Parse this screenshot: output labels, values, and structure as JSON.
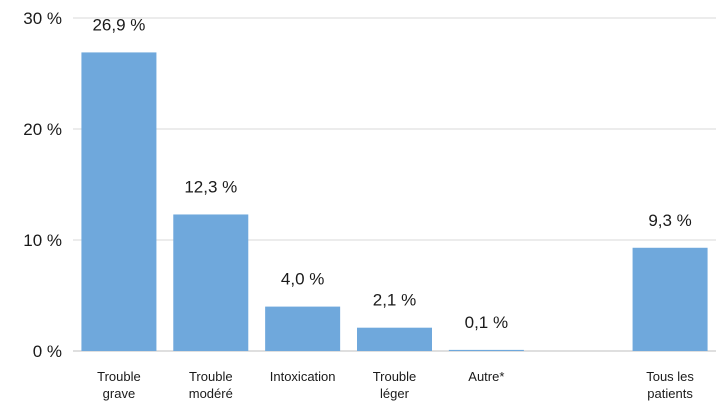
{
  "chart_data": {
    "type": "bar",
    "title": "",
    "xlabel": "",
    "ylabel": "",
    "ylim": [
      0,
      30
    ],
    "yticks": [
      "0 %",
      "10 %",
      "20 %",
      "30 %"
    ],
    "grid": true,
    "legend": "none",
    "categories": [
      [
        "Trouble",
        "grave"
      ],
      [
        "Trouble",
        "modéré"
      ],
      [
        "Intoxication"
      ],
      [
        "Trouble",
        "léger"
      ],
      [
        "Autre*"
      ],
      [],
      [
        "Tous les",
        "patients"
      ]
    ],
    "values": [
      26.9,
      12.3,
      4.0,
      2.1,
      0.1,
      null,
      9.3
    ],
    "data_labels": [
      "26,9 %",
      "12,3 %",
      "4,0 %",
      "2,1 %",
      "0,1 %",
      "",
      "9,3 %"
    ],
    "colors": {
      "bar": "#6fa8dc",
      "grid": "#d9d9d9",
      "axis": "#bfbfbf"
    }
  }
}
